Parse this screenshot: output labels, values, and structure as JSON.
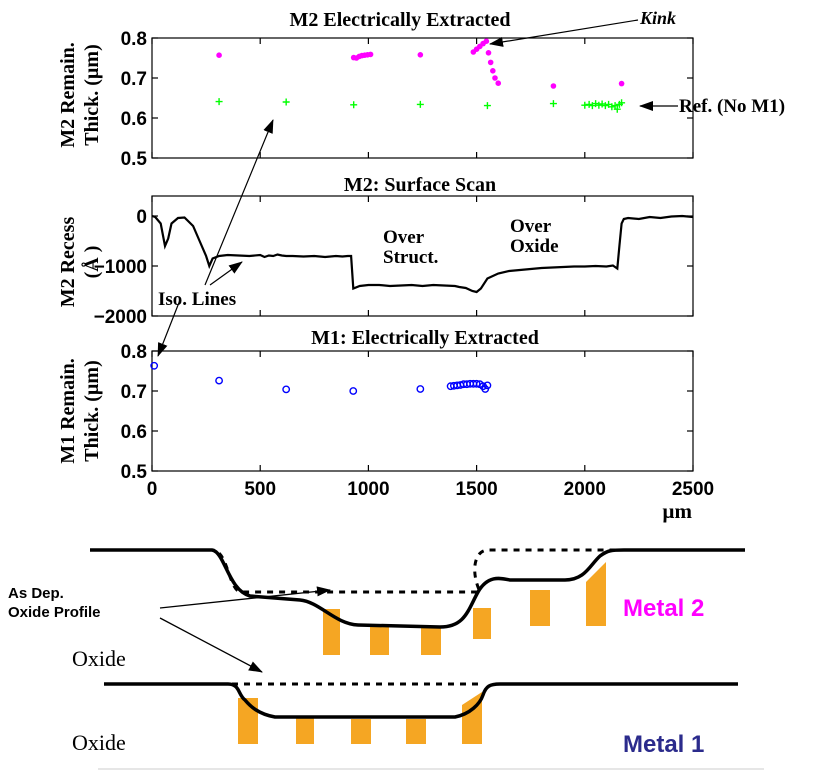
{
  "colors": {
    "m2": "#ff00ff",
    "ref": "#00ff00",
    "m1": "#0000ff",
    "metal1_label": "#2b2b8c",
    "fill_orange": "#f5a623"
  },
  "chart_data": [
    {
      "type": "scatter",
      "title": "M2 Electrically Extracted",
      "ylabel_lines": [
        "M2 Remain.",
        "Thick. (µm)"
      ],
      "xlim": [
        0,
        2500
      ],
      "ylim": [
        0.5,
        0.8
      ],
      "yticks": [
        0.5,
        0.6,
        0.7,
        0.8
      ],
      "ytick_labels": [
        "0.5",
        "0.6",
        "0.7",
        "0.8"
      ],
      "series": [
        {
          "marker": "dot",
          "color": "#ff00ff",
          "points": [
            [
              310,
              0.757
            ],
            [
              932,
              0.751
            ],
            [
              945,
              0.75
            ],
            [
              958,
              0.754
            ],
            [
              970,
              0.756
            ],
            [
              983,
              0.757
            ],
            [
              996,
              0.758
            ],
            [
              1010,
              0.759
            ],
            [
              1240,
              0.758
            ],
            [
              1485,
              0.765
            ],
            [
              1500,
              0.772
            ],
            [
              1515,
              0.779
            ],
            [
              1530,
              0.786
            ],
            [
              1545,
              0.792
            ],
            [
              1555,
              0.763
            ],
            [
              1565,
              0.739
            ],
            [
              1575,
              0.718
            ],
            [
              1585,
              0.7
            ],
            [
              1600,
              0.687
            ],
            [
              1855,
              0.68
            ],
            [
              2170,
              0.686
            ]
          ]
        },
        {
          "marker": "plus",
          "color": "#00ff00",
          "points": [
            [
              310,
              0.641
            ],
            [
              620,
              0.64
            ],
            [
              932,
              0.633
            ],
            [
              1240,
              0.634
            ],
            [
              1550,
              0.631
            ],
            [
              1855,
              0.636
            ],
            [
              2000,
              0.632
            ],
            [
              2020,
              0.634
            ],
            [
              2035,
              0.631
            ],
            [
              2050,
              0.636
            ],
            [
              2065,
              0.632
            ],
            [
              2080,
              0.635
            ],
            [
              2095,
              0.631
            ],
            [
              2110,
              0.634
            ],
            [
              2125,
              0.628
            ],
            [
              2140,
              0.631
            ],
            [
              2150,
              0.622
            ],
            [
              2160,
              0.634
            ],
            [
              2170,
              0.638
            ]
          ]
        }
      ],
      "annotations": {
        "kink": "Kink",
        "ref": "Ref. (No M1)"
      }
    },
    {
      "type": "line",
      "title": "M2: Surface Scan",
      "ylabel_lines": [
        "M2 Recess",
        "(Å )"
      ],
      "xlim": [
        0,
        2500
      ],
      "ylim": [
        -2000,
        400
      ],
      "yticks": [
        -2000,
        -1000,
        0
      ],
      "ytick_labels": [
        "−2000",
        "−1000",
        "0"
      ],
      "x": [
        0,
        15,
        40,
        60,
        75,
        90,
        120,
        150,
        190,
        220,
        250,
        265,
        280,
        310,
        350,
        400,
        450,
        500,
        520,
        540,
        560,
        580,
        600,
        620,
        650,
        700,
        750,
        800,
        850,
        880,
        905,
        920,
        930,
        960,
        1000,
        1050,
        1100,
        1150,
        1200,
        1250,
        1300,
        1350,
        1400,
        1420,
        1450,
        1480,
        1500,
        1520,
        1550,
        1600,
        1650,
        1700,
        1750,
        1800,
        1850,
        1900,
        1950,
        2000,
        2050,
        2100,
        2130,
        2150,
        2160,
        2170,
        2180,
        2200,
        2250,
        2300,
        2350,
        2400,
        2450,
        2500
      ],
      "y": [
        0,
        -20,
        -150,
        -600,
        -450,
        -150,
        -40,
        -30,
        -200,
        -500,
        -800,
        -1000,
        -850,
        -800,
        -780,
        -790,
        -800,
        -780,
        -820,
        -790,
        -800,
        -770,
        -790,
        -800,
        -800,
        -810,
        -800,
        -820,
        -800,
        -810,
        -800,
        -800,
        -1450,
        -1400,
        -1380,
        -1380,
        -1400,
        -1390,
        -1380,
        -1400,
        -1380,
        -1390,
        -1400,
        -1420,
        -1440,
        -1500,
        -1520,
        -1450,
        -1250,
        -1150,
        -1100,
        -1080,
        -1060,
        -1040,
        -1030,
        -1020,
        -1010,
        -1010,
        -1000,
        -1010,
        -990,
        -1050,
        -600,
        -150,
        -60,
        -40,
        -60,
        -20,
        -40,
        -10,
        0,
        -20
      ],
      "annotations": {
        "over_struct": [
          "Over",
          "Struct."
        ],
        "over_oxide": [
          "Over",
          "Oxide"
        ],
        "iso_lines": "Iso. Lines"
      }
    },
    {
      "type": "scatter",
      "title": "M1: Electrically Extracted",
      "ylabel_lines": [
        "M1 Remain.",
        "Thick. (µm)"
      ],
      "xlim": [
        0,
        2500
      ],
      "ylim": [
        0.5,
        0.8
      ],
      "yticks": [
        0.5,
        0.6,
        0.7,
        0.8
      ],
      "ytick_labels": [
        "0.5",
        "0.6",
        "0.7",
        "0.8"
      ],
      "xticks": [
        0,
        500,
        1000,
        1500,
        2000,
        2500
      ],
      "xtick_labels": [
        "0",
        "500",
        "1000",
        "1500",
        "2000",
        "2500"
      ],
      "xunit": "µm",
      "series": [
        {
          "marker": "circle",
          "color": "#0000ff",
          "points": [
            [
              10,
              0.763
            ],
            [
              310,
              0.726
            ],
            [
              620,
              0.704
            ],
            [
              930,
              0.7
            ],
            [
              1240,
              0.705
            ],
            [
              1380,
              0.712
            ],
            [
              1395,
              0.713
            ],
            [
              1410,
              0.714
            ],
            [
              1425,
              0.715
            ],
            [
              1440,
              0.717
            ],
            [
              1455,
              0.717
            ],
            [
              1470,
              0.718
            ],
            [
              1485,
              0.718
            ],
            [
              1500,
              0.718
            ],
            [
              1515,
              0.717
            ],
            [
              1530,
              0.712
            ],
            [
              1540,
              0.705
            ],
            [
              1550,
              0.714
            ]
          ]
        }
      ]
    }
  ],
  "diagram": {
    "as_dep_label": [
      "As Dep.",
      "Oxide Profile"
    ],
    "oxide_label": "Oxide",
    "metal2_label": "Metal 2",
    "metal1_label": "Metal 1"
  }
}
